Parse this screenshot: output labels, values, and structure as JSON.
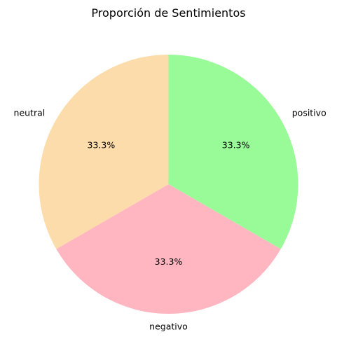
{
  "chart_data": {
    "type": "pie",
    "title": "Proporción de Sentimientos",
    "slices": [
      {
        "label": "positivo",
        "value": 33.3,
        "percent_label": "33.3%",
        "color": "#98fb98"
      },
      {
        "label": "negativo",
        "value": 33.3,
        "percent_label": "33.3%",
        "color": "#ffb6c1"
      },
      {
        "label": "neutral",
        "value": 33.3,
        "percent_label": "33.3%",
        "color": "#fddcab"
      }
    ],
    "start_angle_deg": 90,
    "direction": "clockwise",
    "legend": "none"
  }
}
